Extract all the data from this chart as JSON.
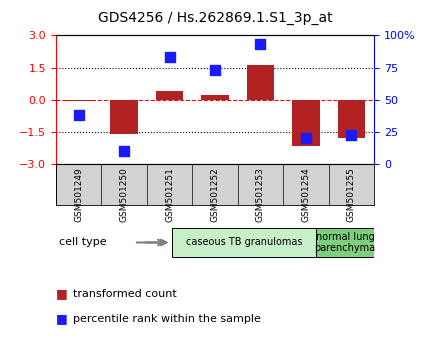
{
  "title": "GDS4256 / Hs.262869.1.S1_3p_at",
  "samples": [
    "GSM501249",
    "GSM501250",
    "GSM501251",
    "GSM501252",
    "GSM501253",
    "GSM501254",
    "GSM501255"
  ],
  "red_bars": [
    -0.05,
    -1.6,
    0.4,
    0.2,
    1.6,
    -2.15,
    -1.8
  ],
  "blue_dots": [
    38,
    10,
    83,
    73,
    93,
    20,
    23
  ],
  "ylim_left": [
    -3,
    3
  ],
  "ylim_right": [
    0,
    100
  ],
  "yticks_left": [
    -3,
    -1.5,
    0,
    1.5,
    3
  ],
  "yticks_right": [
    0,
    25,
    50,
    75,
    100
  ],
  "yticklabels_right": [
    "0",
    "25",
    "50",
    "75",
    "100%"
  ],
  "bar_color": "#B22222",
  "dot_color": "#1a1aff",
  "bar_width": 0.6,
  "dot_size": 55,
  "cell_type_groups": [
    {
      "label": "caseous TB granulomas",
      "start": 0,
      "end": 5,
      "color": "#c8f0c8"
    },
    {
      "label": "normal lung\nparenchyma",
      "start": 5,
      "end": 7,
      "color": "#7dce7d"
    }
  ],
  "legend_red_label": "transformed count",
  "legend_blue_label": "percentile rank within the sample",
  "cell_type_label": "cell type",
  "background_color": "#ffffff",
  "plot_bg_color": "#ffffff",
  "xlabel_bg_color": "#d3d3d3"
}
